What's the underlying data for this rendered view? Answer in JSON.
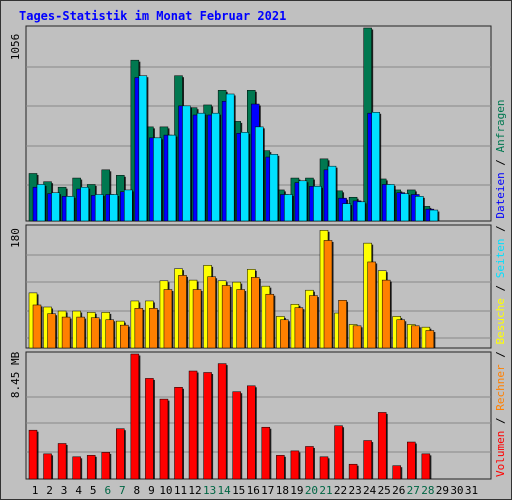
{
  "chart_data": {
    "type": "bar",
    "title": "Tages-Statistik im Monat Februar 2021",
    "categories": [
      "1",
      "2",
      "3",
      "4",
      "5",
      "6",
      "7",
      "8",
      "9",
      "10",
      "11",
      "12",
      "13",
      "14",
      "15",
      "16",
      "17",
      "18",
      "19",
      "20",
      "21",
      "22",
      "23",
      "24",
      "25",
      "26",
      "27",
      "28",
      "29",
      "30",
      "31"
    ],
    "weekend_categories": [
      "6",
      "7",
      "13",
      "14",
      "20",
      "21",
      "27",
      "28"
    ],
    "colors": {
      "title": "#0000ff",
      "tick": "#000000",
      "weekend_tick": "#006644",
      "panel_bg": "#c0c0c0",
      "grid": "#888888",
      "anfragen": "#007850",
      "dateien": "#0000ff",
      "seiten": "#00e0ff",
      "besuche": "#ffff00",
      "rechner": "#ff8000",
      "volumen": "#ff0000"
    },
    "panels": [
      {
        "id": "hits",
        "ymax_label": "1056",
        "ylim": [
          0,
          1056
        ],
        "series": [
          {
            "name": "Anfragen",
            "color_key": "anfragen",
            "values": [
              260,
              215,
              185,
              235,
              200,
              280,
              250,
              880,
              515,
              515,
              795,
              620,
              635,
              715,
              545,
              715,
              385,
              170,
              235,
              235,
              340,
              165,
              130,
              1056,
              230,
              170,
              170,
              80,
              0,
              0,
              0
            ]
          },
          {
            "name": "Dateien",
            "color_key": "dateien",
            "values": [
              185,
              150,
              135,
              175,
              140,
              145,
              160,
              785,
              455,
              470,
              630,
              580,
              580,
              655,
              480,
              640,
              350,
              145,
              210,
              190,
              280,
              125,
              110,
              590,
              200,
              155,
              145,
              65,
              0,
              0,
              0
            ]
          },
          {
            "name": "Seiten",
            "color_key": "seiten",
            "values": [
              200,
              155,
              135,
              185,
              145,
              145,
              170,
              795,
              455,
              470,
              630,
              590,
              590,
              695,
              485,
              515,
              365,
              145,
              220,
              190,
              300,
              95,
              105,
              595,
              200,
              150,
              135,
              60,
              0,
              0,
              0
            ]
          }
        ]
      },
      {
        "id": "visits",
        "ymax_label": "180",
        "ylim": [
          0,
          180
        ],
        "series": [
          {
            "name": "Besuche",
            "color_key": "besuche",
            "values": [
              82,
              61,
              55,
              55,
              53,
              53,
              40,
              70,
              70,
              100,
              118,
              101,
              123,
              100,
              98,
              117,
              92,
              47,
              65,
              86,
              175,
              52,
              35,
              156,
              115,
              47,
              35,
              31,
              0,
              0,
              0
            ]
          },
          {
            "name": "Rechner",
            "color_key": "rechner",
            "values": [
              64,
              51,
              46,
              46,
              45,
              42,
              34,
              59,
              59,
              87,
              108,
              87,
              106,
              93,
              87,
              105,
              80,
              42,
              60,
              78,
              160,
              71,
              33,
              128,
              101,
              42,
              33,
              26,
              0,
              0,
              0
            ]
          }
        ]
      },
      {
        "id": "volume",
        "ymax_label": "8.45 MB",
        "ylim": [
          0,
          8.45
        ],
        "series": [
          {
            "name": "Volumen",
            "color_key": "volumen",
            "values": [
              3.3,
              1.7,
              2.4,
              1.5,
              1.6,
              1.8,
              3.4,
              8.45,
              6.8,
              5.4,
              6.2,
              7.3,
              7.2,
              7.8,
              5.9,
              6.3,
              3.5,
              1.6,
              1.9,
              2.2,
              1.5,
              3.6,
              1.0,
              2.6,
              4.5,
              0.9,
              2.5,
              1.7,
              0,
              0,
              0
            ]
          }
        ]
      }
    ],
    "side_labels": [
      "Volumen",
      "Rechner",
      "Besuche",
      "Seiten",
      "Dateien",
      "Anfragen"
    ],
    "side_separator": " / ",
    "grid": true,
    "legend_placement": "right"
  }
}
